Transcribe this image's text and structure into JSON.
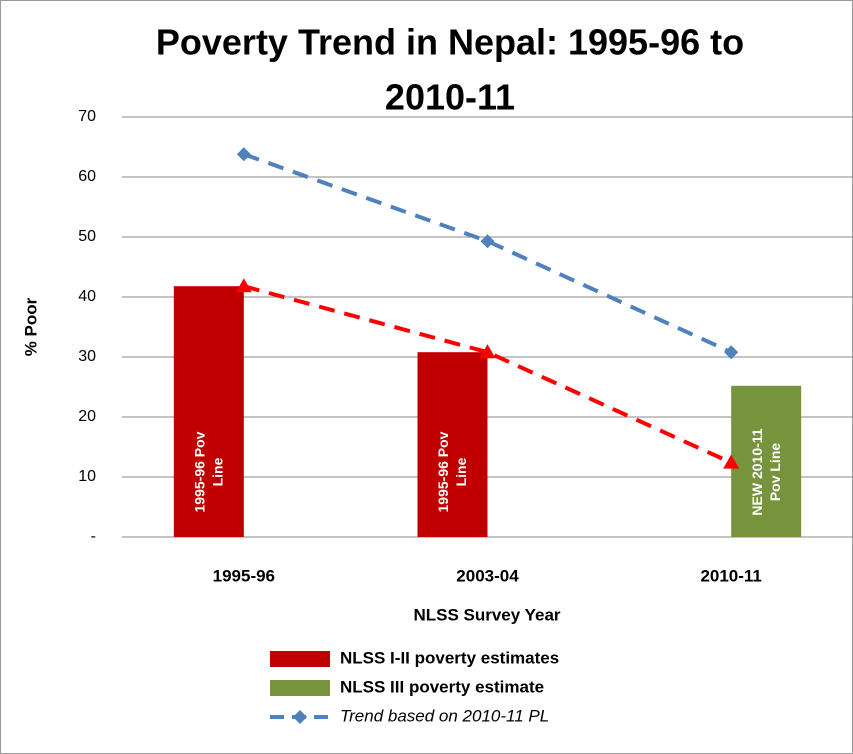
{
  "chart_data": {
    "type": "bar-line",
    "title": [
      "Poverty Trend in Nepal: 1995-96 to",
      "2010-11"
    ],
    "y_label": "% Poor",
    "x_label": "NLSS Survey Year",
    "categories": [
      "1995-96",
      "2003-04",
      "2010-11"
    ],
    "series": [
      {
        "name": "NLSS I-II poverty estimates",
        "type": "bar",
        "color": "#c00000",
        "values": [
          41.8,
          30.8,
          null
        ]
      },
      {
        "name": "NLSS III poverty estimate",
        "type": "bar",
        "color": "#77933c",
        "values": [
          null,
          null,
          25.2
        ]
      },
      {
        "type": "line",
        "color": "#ff0000",
        "marker": "triangle",
        "values": [
          41.8,
          30.8,
          12.4
        ]
      },
      {
        "name": "Trend based on 2010-11 PL",
        "type": "line",
        "color": "#4f81bd",
        "marker": "diamond",
        "values": [
          63.8,
          49.3,
          30.8
        ]
      }
    ],
    "bar_texts": [
      [
        "1995-96  Pov",
        "Line"
      ],
      [
        "1995-96 Pov",
        "Line"
      ],
      [
        "NEW 2010-11",
        "Pov Line"
      ]
    ],
    "ylim": [
      0,
      70
    ],
    "yticks": [
      {
        "value": 0,
        "label": "-"
      },
      10,
      20,
      30,
      40,
      50,
      60,
      70
    ],
    "grid": true,
    "legend": "bottom"
  }
}
